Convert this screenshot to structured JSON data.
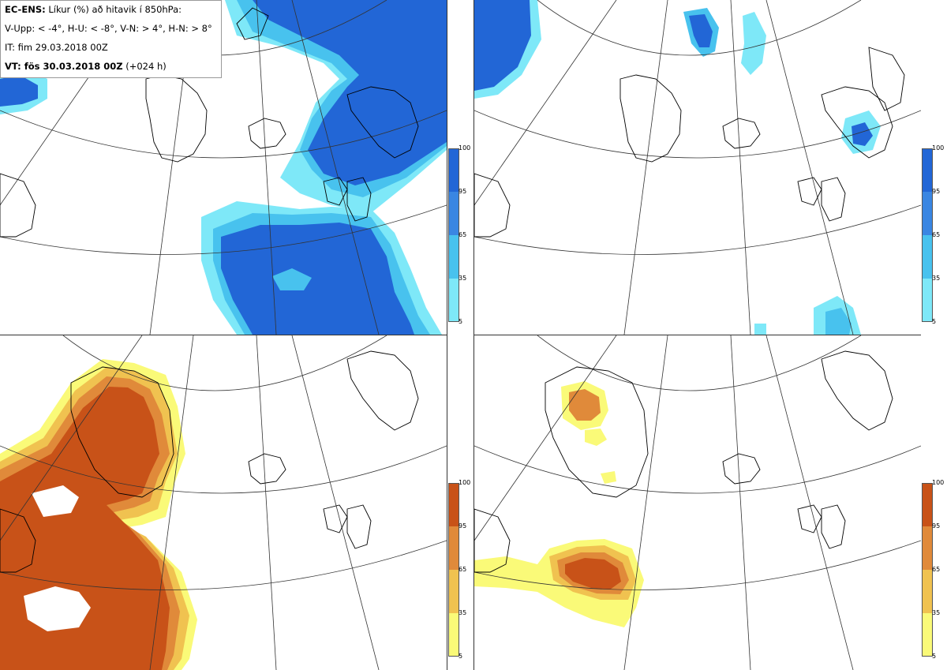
{
  "info": {
    "line1_bold": "EC-ENS:",
    "line1_rest": "Líkur (%) að hitavik í 850hPa:",
    "line2": "V-Upp: < -4°, H-U: < -8°, V-N: > 4°, H-N: > 8°",
    "line3": "IT: fim 29.03.2018 00Z",
    "line4_bold": "VT: fös 30.03.2018 00Z",
    "line4_rest": "(+024 h)"
  },
  "panels": [
    {
      "name": "V-Upp",
      "scale": "blue"
    },
    {
      "name": "H-U",
      "scale": "blue"
    },
    {
      "name": "V-N",
      "scale": "orange"
    },
    {
      "name": "H-N",
      "scale": "orange"
    }
  ],
  "colorbar": {
    "ticks": [
      "100",
      "95",
      "65",
      "35",
      "5"
    ],
    "blue_colors": [
      "#2266d6",
      "#3a86e2",
      "#48c2ee",
      "#7ee8f8"
    ],
    "orange_colors": [
      "#c85218",
      "#e08a3a",
      "#f0c250",
      "#fafa78"
    ]
  },
  "colors": {
    "land_outline": "#000000",
    "graticule": "#333333"
  }
}
